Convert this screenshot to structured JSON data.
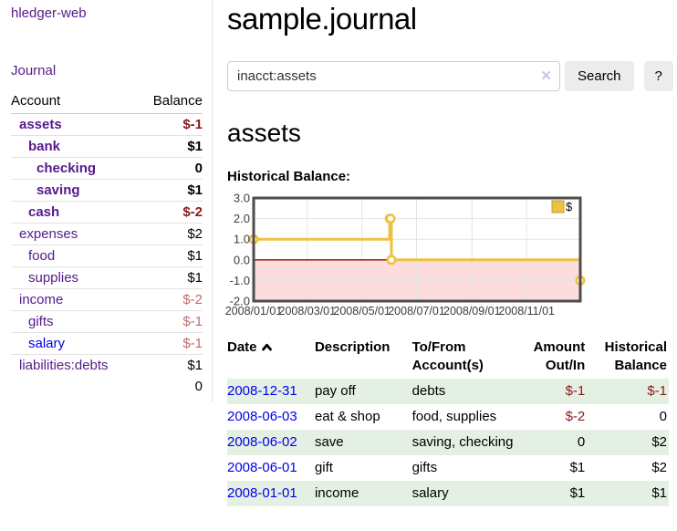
{
  "app": {
    "title": "hledger-web"
  },
  "sidebar": {
    "journal_link": "Journal",
    "accounts_table": {
      "headers": {
        "account": "Account",
        "balance": "Balance"
      },
      "rows": [
        {
          "name": "assets",
          "depth": 1,
          "bold": true,
          "balance": "$-1",
          "balance_style": "neg"
        },
        {
          "name": "bank",
          "depth": 2,
          "bold": true,
          "balance": "$1",
          "balance_style": ""
        },
        {
          "name": "checking",
          "depth": 3,
          "bold": true,
          "balance": "0",
          "balance_style": ""
        },
        {
          "name": "saving",
          "depth": 3,
          "bold": true,
          "balance": "$1",
          "balance_style": ""
        },
        {
          "name": "cash",
          "depth": 2,
          "bold": true,
          "balance": "$-2",
          "balance_style": "neg"
        },
        {
          "name": "expenses",
          "depth": 1,
          "bold": false,
          "balance": "$2",
          "balance_style": ""
        },
        {
          "name": "food",
          "depth": 2,
          "bold": false,
          "balance": "$1",
          "balance_style": ""
        },
        {
          "name": "supplies",
          "depth": 2,
          "bold": false,
          "balance": "$1",
          "balance_style": ""
        },
        {
          "name": "income",
          "depth": 1,
          "bold": false,
          "balance": "$-2",
          "balance_style": "neg-light"
        },
        {
          "name": "gifts",
          "depth": 2,
          "bold": false,
          "balance": "$-1",
          "balance_style": "neg-light"
        },
        {
          "name": "salary",
          "depth": 2,
          "bold": false,
          "balance": "$-1",
          "balance_style": "neg-light",
          "link_style": "blue"
        },
        {
          "name": "liabilities:debts",
          "depth": 1,
          "bold": false,
          "balance": "$1",
          "balance_style": ""
        }
      ],
      "total": "0"
    }
  },
  "header": {
    "title": "sample.journal"
  },
  "search": {
    "value": "inacct:assets",
    "clear_icon": "✕",
    "button_label": "Search",
    "help_label": "?"
  },
  "account_page": {
    "title": "assets",
    "chart_label": "Historical Balance:"
  },
  "chart_data": {
    "type": "line",
    "style": "step",
    "title": "Historical Balance",
    "series": [
      {
        "name": "$",
        "color": "#edc240",
        "points": [
          [
            "2008-01-01",
            1
          ],
          [
            "2008-06-01",
            2
          ],
          [
            "2008-06-02",
            2
          ],
          [
            "2008-06-03",
            0
          ],
          [
            "2008-12-31",
            -1
          ]
        ]
      }
    ],
    "xlim": [
      "2008-01-01",
      "2008-12-31"
    ],
    "ylim": [
      -2,
      3
    ],
    "x_ticks": [
      "2008/01/01",
      "2008/03/01",
      "2008/05/01",
      "2008/07/01",
      "2008/09/01",
      "2008/11/01"
    ],
    "y_ticks": [
      "3.0",
      "2.0",
      "1.0",
      "0.0",
      "-1.0",
      "-2.0"
    ],
    "legend_position": "top-right",
    "grid": true,
    "negative_fill": "#fcdcdc",
    "zero_line_color": "#a00000",
    "marker": "open-circle"
  },
  "register_table": {
    "headers": {
      "date": "Date",
      "description": "Description",
      "accounts": "To/From Account(s)",
      "amount": "Amount Out/In",
      "balance": "Historical Balance"
    },
    "rows": [
      {
        "date": "2008-12-31",
        "description": "pay off",
        "accounts": "debts",
        "amount": "$-1",
        "amount_negative": true,
        "balance": "$-1",
        "balance_negative": true
      },
      {
        "date": "2008-06-03",
        "description": "eat & shop",
        "accounts": "food, supplies",
        "amount": "$-2",
        "amount_negative": true,
        "balance": "0",
        "balance_negative": false
      },
      {
        "date": "2008-06-02",
        "description": "save",
        "accounts": "saving, checking",
        "amount": "0",
        "amount_negative": false,
        "balance": "$2",
        "balance_negative": false
      },
      {
        "date": "2008-06-01",
        "description": "gift",
        "accounts": "gifts",
        "amount": "$1",
        "amount_negative": false,
        "balance": "$2",
        "balance_negative": false
      },
      {
        "date": "2008-01-01",
        "description": "income",
        "accounts": "salary",
        "amount": "$1",
        "amount_negative": false,
        "balance": "$1",
        "balance_negative": false
      }
    ]
  }
}
